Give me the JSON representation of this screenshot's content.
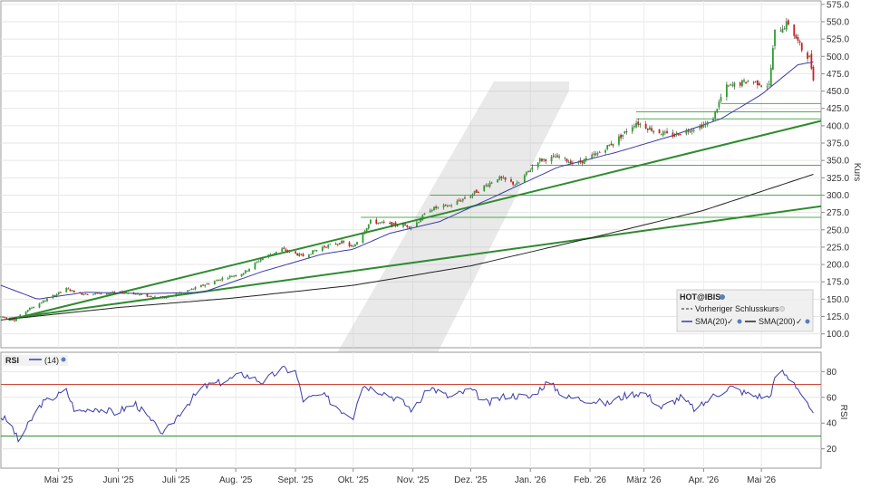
{
  "chart_data": [
    {
      "type": "candlestick",
      "ylabel": "Kurs",
      "ylim": [
        80,
        580
      ],
      "yticks": [
        100,
        125,
        150,
        175,
        200,
        225,
        250,
        275,
        300,
        325,
        350,
        375,
        400,
        425,
        450,
        475,
        500,
        525,
        550,
        575
      ],
      "xlim": [
        "2025-04-01",
        "2026-06-01"
      ],
      "months": [
        {
          "date": "2025-05-01",
          "label": "Mai '25"
        },
        {
          "date": "2025-06-01",
          "label": "Juni '25"
        },
        {
          "date": "2025-07-01",
          "label": "Juli '25"
        },
        {
          "date": "2025-08-01",
          "label": "Aug. '25"
        },
        {
          "date": "2025-09-01",
          "label": "Sept. '25"
        },
        {
          "date": "2025-10-01",
          "label": "Okt. '25"
        },
        {
          "date": "2025-11-01",
          "label": "Nov. '25"
        },
        {
          "date": "2025-12-01",
          "label": "Dez. '25"
        },
        {
          "date": "2026-01-01",
          "label": "Jan. '26"
        },
        {
          "date": "2026-02-01",
          "label": "Feb. '26"
        },
        {
          "date": "2026-03-01",
          "label": "März '26"
        },
        {
          "date": "2026-04-01",
          "label": "Apr. '26"
        },
        {
          "date": "2026-05-01",
          "label": "Mai '26"
        }
      ],
      "price_path": [
        [
          "2025-04-01",
          125
        ],
        [
          "2025-04-08",
          120
        ],
        [
          "2025-04-15",
          135
        ],
        [
          "2025-04-25",
          150
        ],
        [
          "2025-05-05",
          165
        ],
        [
          "2025-05-12",
          158
        ],
        [
          "2025-05-22",
          158
        ],
        [
          "2025-06-05",
          160
        ],
        [
          "2025-06-15",
          155
        ],
        [
          "2025-06-25",
          152
        ],
        [
          "2025-07-10",
          165
        ],
        [
          "2025-07-25",
          180
        ],
        [
          "2025-08-05",
          188
        ],
        [
          "2025-08-15",
          210
        ],
        [
          "2025-08-25",
          222
        ],
        [
          "2025-09-05",
          212
        ],
        [
          "2025-09-15",
          225
        ],
        [
          "2025-09-25",
          232
        ],
        [
          "2025-10-01",
          225
        ],
        [
          "2025-10-05",
          242
        ],
        [
          "2025-10-10",
          262
        ],
        [
          "2025-10-20",
          258
        ],
        [
          "2025-11-01",
          255
        ],
        [
          "2025-11-10",
          280
        ],
        [
          "2025-11-20",
          285
        ],
        [
          "2025-12-01",
          300
        ],
        [
          "2025-12-15",
          325
        ],
        [
          "2025-12-25",
          315
        ],
        [
          "2026-01-05",
          350
        ],
        [
          "2026-01-15",
          355
        ],
        [
          "2026-01-25",
          345
        ],
        [
          "2026-02-05",
          360
        ],
        [
          "2026-02-15",
          380
        ],
        [
          "2026-02-25",
          405
        ],
        [
          "2026-03-05",
          395
        ],
        [
          "2026-03-15",
          385
        ],
        [
          "2026-03-25",
          395
        ],
        [
          "2026-04-05",
          405
        ],
        [
          "2026-04-12",
          455
        ],
        [
          "2026-04-25",
          465
        ],
        [
          "2026-05-05",
          458
        ],
        [
          "2026-05-08",
          535
        ],
        [
          "2026-05-15",
          548
        ],
        [
          "2026-05-22",
          510
        ],
        [
          "2026-05-26",
          498
        ],
        [
          "2026-05-28",
          470
        ]
      ],
      "sma20": [
        [
          "2025-04-01",
          170
        ],
        [
          "2025-04-20",
          150
        ],
        [
          "2025-05-15",
          160
        ],
        [
          "2025-06-15",
          158
        ],
        [
          "2025-07-15",
          160
        ],
        [
          "2025-08-15",
          190
        ],
        [
          "2025-09-15",
          215
        ],
        [
          "2025-10-01",
          222
        ],
        [
          "2025-10-20",
          245
        ],
        [
          "2025-11-15",
          262
        ],
        [
          "2025-12-15",
          300
        ],
        [
          "2026-01-15",
          340
        ],
        [
          "2026-02-15",
          362
        ],
        [
          "2026-03-15",
          385
        ],
        [
          "2026-04-10",
          410
        ],
        [
          "2026-05-01",
          445
        ],
        [
          "2026-05-20",
          488
        ],
        [
          "2026-05-28",
          492
        ]
      ],
      "sma200": [
        [
          "2025-04-01",
          120
        ],
        [
          "2025-06-01",
          138
        ],
        [
          "2025-08-01",
          152
        ],
        [
          "2025-10-01",
          170
        ],
        [
          "2025-12-01",
          198
        ],
        [
          "2026-02-01",
          238
        ],
        [
          "2026-04-01",
          278
        ],
        [
          "2026-05-28",
          330
        ]
      ],
      "trendlines": [
        {
          "from": [
            "2025-04-05",
            120
          ],
          "to": [
            "2026-06-01",
            407
          ]
        },
        {
          "from": [
            "2025-04-05",
            122
          ],
          "to": [
            "2026-06-01",
            284
          ]
        }
      ],
      "support_levels": [
        268,
        300,
        343,
        410,
        420,
        432
      ],
      "legend": {
        "title": "HOT@IBIS",
        "items": [
          "Vorheriger Schlusskurs",
          "SMA(20)",
          "SMA(200)"
        ]
      }
    },
    {
      "type": "line",
      "title": "RSI",
      "period": "(14)",
      "ylabel": "RSI",
      "ylim": [
        5,
        95
      ],
      "yticks": [
        20,
        40,
        60,
        80
      ],
      "hlines": [
        30,
        70
      ],
      "rsi": [
        [
          "2025-04-01",
          45
        ],
        [
          "2025-04-06",
          40
        ],
        [
          "2025-04-10",
          26
        ],
        [
          "2025-04-15",
          38
        ],
        [
          "2025-04-22",
          55
        ],
        [
          "2025-05-01",
          62
        ],
        [
          "2025-05-05",
          65
        ],
        [
          "2025-05-10",
          48
        ],
        [
          "2025-05-20",
          52
        ],
        [
          "2025-05-30",
          48
        ],
        [
          "2025-06-10",
          55
        ],
        [
          "2025-06-20",
          38
        ],
        [
          "2025-06-25",
          32
        ],
        [
          "2025-07-05",
          52
        ],
        [
          "2025-07-15",
          68
        ],
        [
          "2025-07-25",
          72
        ],
        [
          "2025-08-05",
          78
        ],
        [
          "2025-08-15",
          72
        ],
        [
          "2025-08-25",
          82
        ],
        [
          "2025-09-01",
          80
        ],
        [
          "2025-09-05",
          58
        ],
        [
          "2025-09-15",
          62
        ],
        [
          "2025-09-25",
          50
        ],
        [
          "2025-10-01",
          45
        ],
        [
          "2025-10-05",
          70
        ],
        [
          "2025-10-15",
          65
        ],
        [
          "2025-10-25",
          58
        ],
        [
          "2025-11-01",
          50
        ],
        [
          "2025-11-10",
          68
        ],
        [
          "2025-11-20",
          60
        ],
        [
          "2025-12-01",
          66
        ],
        [
          "2025-12-10",
          55
        ],
        [
          "2025-12-20",
          62
        ],
        [
          "2026-01-01",
          60
        ],
        [
          "2026-01-10",
          72
        ],
        [
          "2026-01-20",
          60
        ],
        [
          "2026-02-01",
          58
        ],
        [
          "2026-02-10",
          55
        ],
        [
          "2026-02-20",
          62
        ],
        [
          "2026-03-01",
          64
        ],
        [
          "2026-03-10",
          52
        ],
        [
          "2026-03-20",
          60
        ],
        [
          "2026-03-28",
          50
        ],
        [
          "2026-04-05",
          60
        ],
        [
          "2026-04-15",
          68
        ],
        [
          "2026-04-25",
          62
        ],
        [
          "2026-05-05",
          60
        ],
        [
          "2026-05-10",
          82
        ],
        [
          "2026-05-18",
          72
        ],
        [
          "2026-05-22",
          62
        ],
        [
          "2026-05-28",
          45
        ]
      ]
    }
  ]
}
